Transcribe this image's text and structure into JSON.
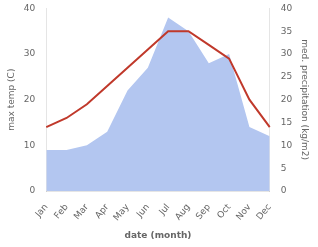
{
  "chart_data": {
    "type": "line",
    "categories": [
      "Jan",
      "Feb",
      "Mar",
      "Apr",
      "May",
      "Jun",
      "Jul",
      "Aug",
      "Sep",
      "Oct",
      "Nov",
      "Dec"
    ],
    "series": [
      {
        "type": "area",
        "color": "#b3c6f0",
        "axis": "y2",
        "values": [
          9,
          9,
          10,
          13,
          22,
          27,
          38,
          35,
          28,
          30,
          14,
          12
        ]
      },
      {
        "type": "line",
        "color": "#c0392b",
        "values": [
          14,
          16,
          19,
          23,
          27,
          31,
          35,
          35,
          32,
          29,
          20,
          14
        ]
      }
    ],
    "xlabel": "date (month)",
    "ylabel": "max temp (C)",
    "y2label": "med. precipitation (kg/m2)",
    "ylim": [
      0,
      40
    ],
    "yticks": [
      0,
      10,
      20,
      30,
      40
    ],
    "y2lim": [
      0,
      40
    ],
    "y2ticks": [
      0,
      5,
      10,
      15,
      20,
      25,
      30,
      35,
      40
    ],
    "grid": false
  }
}
